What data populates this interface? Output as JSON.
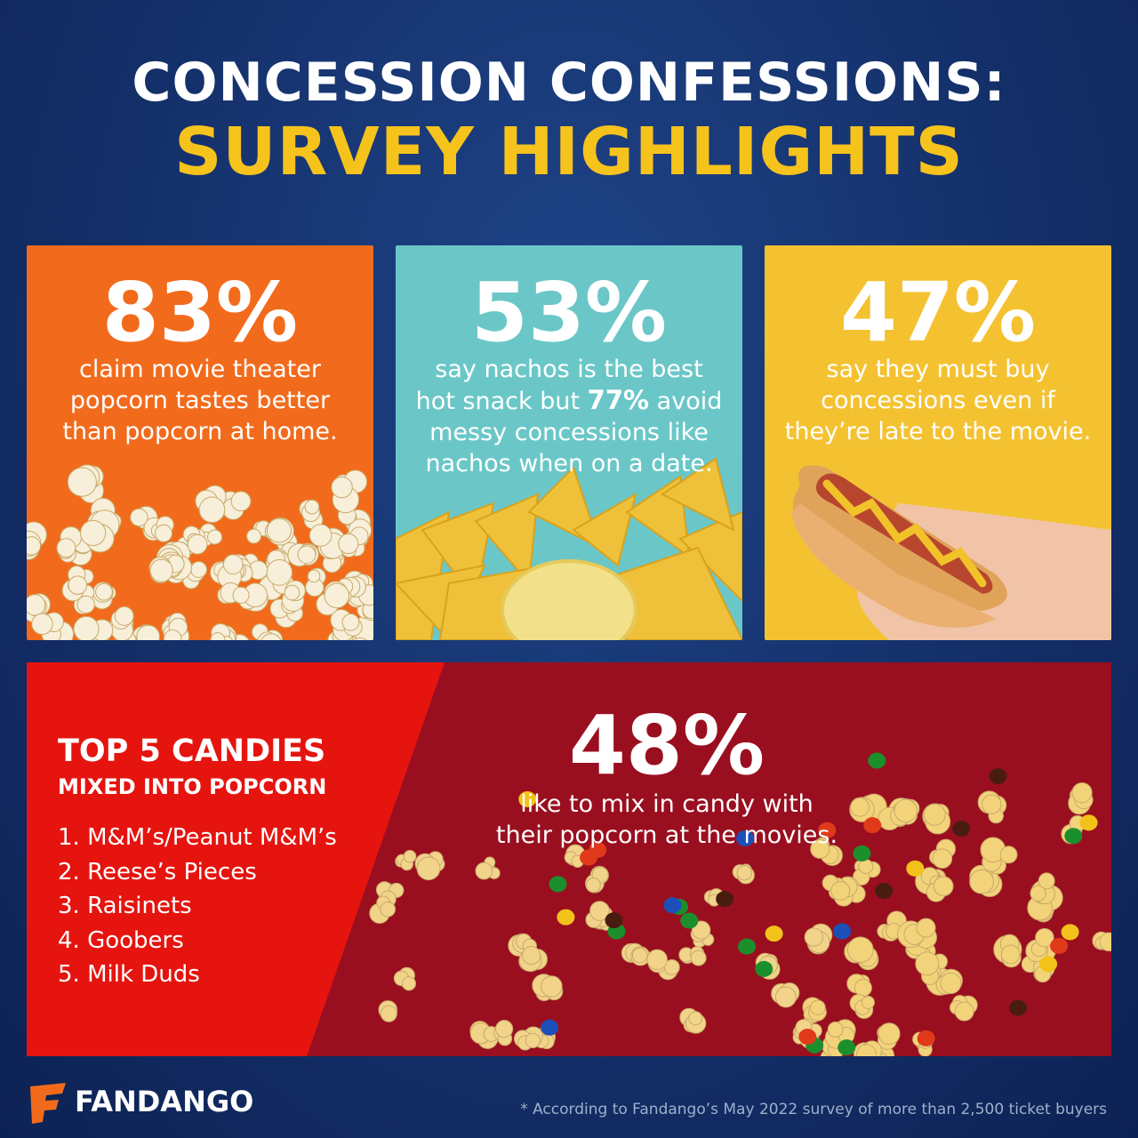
{
  "header": {
    "title_line1": "CONCESSION CONFESSIONS:",
    "title_line2": "SURVEY HIGHLIGHTS"
  },
  "cards": [
    {
      "stat": "83%",
      "lines": [
        "claim movie theater",
        "popcorn tastes better",
        "than popcorn at home."
      ]
    },
    {
      "stat": "53%",
      "line1": "say nachos is the best",
      "line2": {
        "before": "hot snack but",
        "bold": "77%",
        "after": "avoid"
      },
      "line3": "messy concessions like",
      "line4": "nachos when on a date."
    },
    {
      "stat": "47%",
      "lines": [
        "say they must buy",
        "concessions even if",
        "they’re late to the movie."
      ]
    }
  ],
  "candies": {
    "heading": "TOP 5 CANDIES",
    "subheading": "MIXED INTO POPCORN",
    "items": [
      "1. M&M’s/Peanut M&M’s",
      "2. Reese’s Pieces",
      "3. Raisinets",
      "4. Goobers",
      "5. Milk Duds"
    ]
  },
  "mix": {
    "stat": "48%",
    "lines": [
      "like to mix in candy with",
      "their popcorn at the movies."
    ]
  },
  "footer": {
    "brand": "FANDANGO",
    "footnote": "* According to Fandango’s May 2022 survey of more than 2,500 ticket buyers"
  }
}
